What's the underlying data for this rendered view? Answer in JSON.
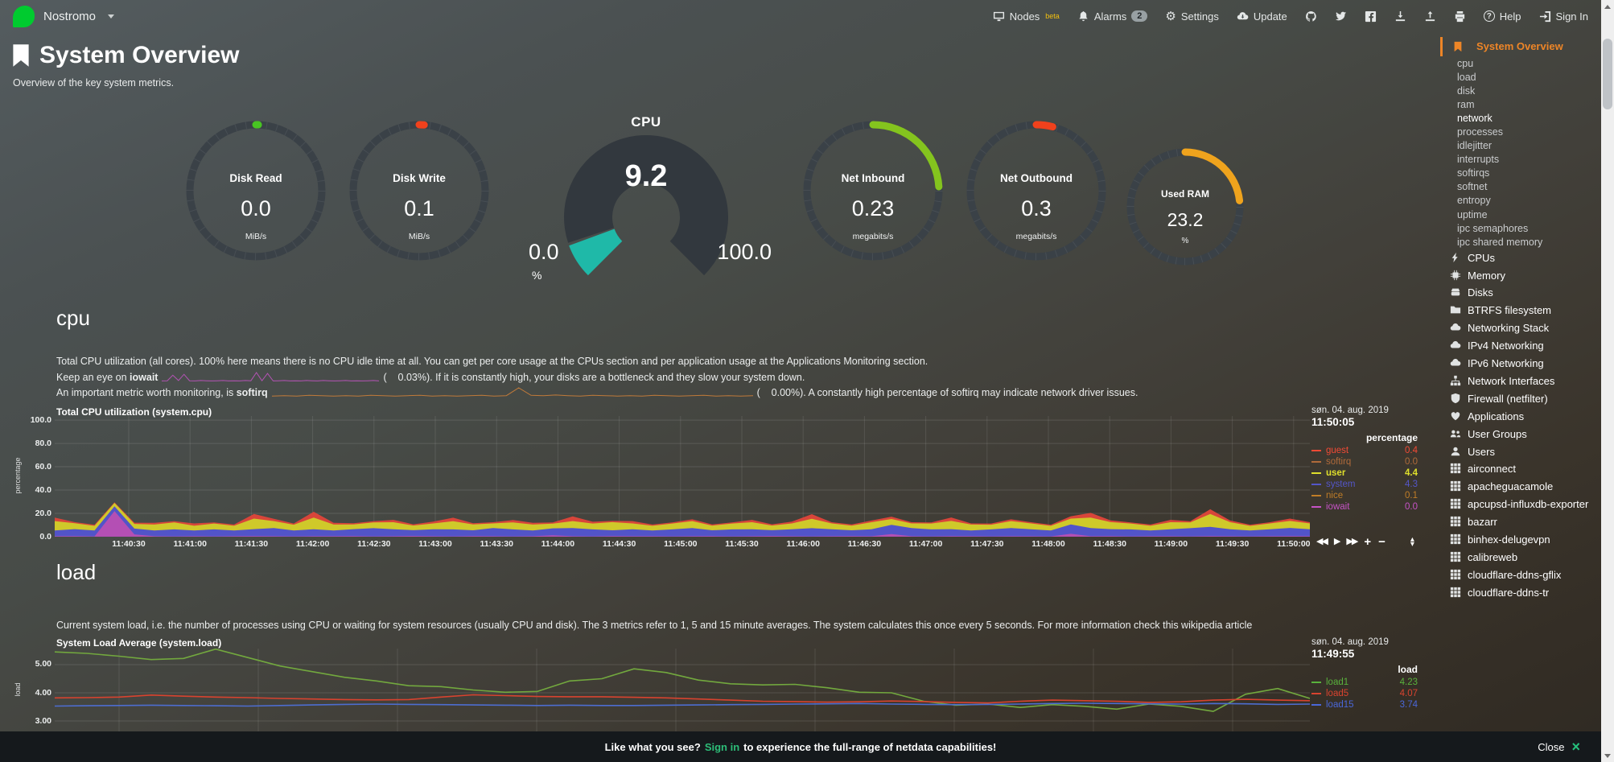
{
  "navbar": {
    "hostname": "Nostromo",
    "nodes_label": "Nodes",
    "nodes_beta": "beta",
    "alarms_label": "Alarms",
    "alarms_badge": "2",
    "settings_label": "Settings",
    "update_label": "Update",
    "help_label": "Help",
    "signin_label": "Sign In"
  },
  "header": {
    "title": "System Overview",
    "subtitle": "Overview of the key system metrics."
  },
  "gauges": [
    {
      "label": "Disk Read",
      "value": "0.0",
      "units": "MiB/s",
      "color": "#48c522",
      "percent": 0.6,
      "size": 178
    },
    {
      "label": "Disk Write",
      "value": "0.1",
      "units": "MiB/s",
      "color": "#f0411c",
      "percent": 1.2,
      "size": 178
    },
    {
      "label": "Net Inbound",
      "value": "0.23",
      "units": "megabits/s",
      "color": "#84c41e",
      "percent": 24,
      "size": 178
    },
    {
      "label": "Net Outbound",
      "value": "0.3",
      "units": "megabits/s",
      "color": "#f0411c",
      "percent": 4,
      "size": 178
    },
    {
      "label": "Used RAM",
      "value": "23.2",
      "units": "%",
      "color": "#efa31d",
      "percent": 23.2,
      "size": 150
    }
  ],
  "cpu_gauge": {
    "title": "CPU",
    "value": "9.2",
    "min": "0.0",
    "max": "100.0",
    "units": "%",
    "percent": 9.2,
    "color": "#1fb9a8"
  },
  "sections": {
    "cpu": {
      "heading": "cpu",
      "desc1": "Total CPU utilization (all cores). 100% here means there is no CPU idle time at all. You can get per core usage at the CPUs section and per application usage at the Applications Monitoring section.",
      "line2_pre": "Keep an eye on ",
      "line2_bold": "iowait",
      "line2_value": "(    0.03%)",
      "line2_post": ". If it is constantly high, your disks are a bottleneck and they slow your system down.",
      "line3_pre": "An important metric worth monitoring, is ",
      "line3_bold": "softirq",
      "line3_value": "(    0.00%)",
      "line3_post": ". A constantly high percentage of softirq may indicate network driver issues.",
      "spark_iowait": [
        0.2,
        0.3,
        2.8,
        0.4,
        3.2,
        0.3,
        0.2,
        0.4,
        0.3,
        0.2,
        0.3,
        0.4,
        0.2,
        0.3,
        0.2,
        0.4,
        0.3,
        4.0,
        0.3,
        3.6,
        0.2,
        0.3,
        0.4,
        0.2,
        0.3,
        0.2,
        0.4,
        0.3,
        0.2,
        0.4,
        0.3,
        0.2,
        0.3,
        0.4,
        0.2,
        0.3,
        0.2,
        0.3,
        0.4,
        0.2
      ],
      "spark_softirq": [
        0.2,
        0.3,
        0.2,
        0.4,
        0.3,
        0.2,
        0.3,
        0.2,
        0.4,
        0.3,
        0.2,
        0.3,
        0.4,
        0.2,
        0.3,
        0.2,
        0.3,
        0.4,
        0.2,
        0.3,
        2.6,
        0.4,
        0.3,
        0.5,
        0.3,
        0.2,
        0.4,
        0.3,
        0.2,
        0.3,
        0.2,
        0.4,
        0.3,
        0.2,
        0.3,
        0.4,
        0.2,
        0.3,
        0.2,
        0.3
      ]
    },
    "load": {
      "heading": "load",
      "desc1": "Current system load, i.e. the number of processes using CPU or waiting for system resources (usually CPU and disk). The 3 metrics refer to 1, 5 and 15 minute averages. The system calculates this once every 5 seconds. For more information check this wikipedia article"
    }
  },
  "chart_data": [
    {
      "type": "area",
      "stacked": true,
      "title": "Total CPU utilization (system.cpu)",
      "ylabel": "percentage",
      "ylim": [
        0,
        103.5
      ],
      "yticks": [
        {
          "v": 0,
          "label": "0.0"
        },
        {
          "v": 20,
          "label": "20.0"
        },
        {
          "v": 40,
          "label": "40.0"
        },
        {
          "v": 60,
          "label": "60.0"
        },
        {
          "v": 80,
          "label": "80.0"
        },
        {
          "v": 100,
          "label": "100.0"
        }
      ],
      "x_ticks": [
        "11:40:30",
        "11:41:00",
        "11:41:30",
        "11:42:00",
        "11:42:30",
        "11:43:00",
        "11:43:30",
        "11:44:00",
        "11:44:30",
        "11:45:00",
        "11:45:30",
        "11:46:00",
        "11:46:30",
        "11:47:00",
        "11:47:30",
        "11:48:00",
        "11:48:30",
        "11:49:00",
        "11:49:30",
        "11:50:00"
      ],
      "legend": {
        "date": "søn. 04. aug. 2019",
        "time": "11:50:05",
        "unit": "percentage",
        "series": [
          {
            "name": "guest",
            "value": "0.4",
            "color": "#f24a35",
            "bold": false
          },
          {
            "name": "softirq",
            "value": "0.0",
            "color": "#b06a3a",
            "bold": false
          },
          {
            "name": "user",
            "value": "4.4",
            "color": "#dfdf2c",
            "bold": true
          },
          {
            "name": "system",
            "value": "4.3",
            "color": "#5456c8",
            "bold": false
          },
          {
            "name": "nice",
            "value": "0.1",
            "color": "#c07d27",
            "bold": false
          },
          {
            "name": "iowait",
            "value": "0.0",
            "color": "#c653c6",
            "bold": false
          }
        ]
      },
      "series": [
        {
          "name": "iowait",
          "color": "#b44fb4",
          "values": [
            0.4,
            0.5,
            0.3,
            22,
            2,
            0.4,
            0.3,
            0.4,
            0.3,
            0.4,
            0.5,
            0.4,
            0.3,
            0.4,
            0.4,
            0.5,
            0.3,
            0.4,
            0.6,
            0.4,
            0.3,
            0.5,
            0.4,
            0.3,
            0.4,
            1.2,
            0.4,
            0.3,
            0.5,
            0.4,
            0.4,
            0.3,
            0.4,
            0.5,
            0.3,
            0.4,
            0.6,
            0.4,
            0.3,
            0.4,
            0.5,
            0.4,
            2.2,
            0.4,
            0.3,
            0.5,
            0.4,
            0.3,
            0.4,
            0.4,
            0.3,
            2.5,
            0.4,
            0.5,
            0.3,
            0.4,
            0.4,
            0.3,
            0.5,
            0.4,
            0.3,
            0.4,
            0.5,
            0.4
          ]
        },
        {
          "name": "system",
          "color": "#5254c8",
          "values": [
            5,
            6,
            5,
            4,
            5,
            5,
            6,
            5,
            6,
            5,
            6,
            7,
            5,
            6,
            5,
            6,
            7,
            6,
            5,
            6,
            6,
            5,
            7,
            6,
            5,
            6,
            7,
            6,
            5,
            6,
            5,
            6,
            7,
            5,
            6,
            6,
            5,
            6,
            7,
            6,
            5,
            6,
            8,
            7,
            6,
            6,
            5,
            6,
            7,
            6,
            5,
            8,
            7,
            6,
            6,
            5,
            6,
            7,
            8,
            6,
            5,
            6,
            7,
            6
          ]
        },
        {
          "name": "user",
          "color": "#cfc92a",
          "values": [
            8,
            5,
            4,
            3,
            4,
            5,
            6,
            4,
            5,
            4,
            9,
            6,
            5,
            10,
            5,
            4,
            5,
            6,
            4,
            5,
            7,
            5,
            4,
            6,
            5,
            4,
            6,
            5,
            7,
            5,
            4,
            5,
            6,
            4,
            5,
            6,
            4,
            5,
            8,
            5,
            4,
            6,
            5,
            4,
            5,
            7,
            5,
            4,
            6,
            5,
            4,
            5,
            9,
            6,
            5,
            4,
            6,
            5,
            11,
            6,
            4,
            5,
            6,
            5
          ]
        },
        {
          "name": "guest",
          "color": "#d8453a",
          "values": [
            3,
            1,
            1,
            0.5,
            1,
            1.5,
            1,
            2,
            1,
            1,
            4,
            2,
            1,
            5,
            1.5,
            1,
            1,
            2,
            1,
            1.5,
            3,
            1,
            1,
            2,
            1.5,
            1,
            4,
            1.5,
            1,
            2,
            1,
            1,
            1.5,
            1,
            1,
            2,
            1,
            1.5,
            4,
            1,
            1,
            1.5,
            2,
            1,
            1,
            3,
            1,
            1,
            1.5,
            1,
            1,
            2,
            4,
            1.5,
            1,
            1,
            2,
            1,
            4,
            1.5,
            1,
            1,
            2,
            1
          ]
        }
      ]
    },
    {
      "type": "line",
      "title": "System Load Average (system.load)",
      "ylabel": "load",
      "ylim": [
        2.63,
        5.57
      ],
      "yticks": [
        {
          "v": 3,
          "label": "3.00"
        },
        {
          "v": 4,
          "label": "4.00"
        },
        {
          "v": 5,
          "label": "5.00"
        }
      ],
      "legend": {
        "date": "søn. 04. aug. 2019",
        "time": "11:49:55",
        "unit": "load",
        "series": [
          {
            "name": "load1",
            "value": "4.23",
            "color": "#59b23c",
            "bold": false
          },
          {
            "name": "load5",
            "value": "4.07",
            "color": "#d8432f",
            "bold": false
          },
          {
            "name": "load15",
            "value": "3.74",
            "color": "#4a67d8",
            "bold": false
          }
        ]
      },
      "series": [
        {
          "name": "load1",
          "color": "#72a83e",
          "values": [
            5.45,
            5.4,
            5.3,
            5.18,
            5.22,
            5.55,
            5.25,
            4.95,
            4.75,
            4.55,
            4.42,
            4.25,
            4.22,
            4.1,
            4.02,
            4.05,
            4.42,
            4.5,
            4.85,
            4.72,
            4.45,
            4.32,
            4.28,
            4.3,
            4.18,
            4.02,
            4.0,
            3.7,
            3.56,
            3.6,
            3.48,
            3.58,
            3.52,
            3.42,
            3.6,
            3.52,
            3.34,
            3.95,
            4.15,
            3.8
          ]
        },
        {
          "name": "load5",
          "color": "#d8432f",
          "values": [
            3.82,
            3.83,
            3.85,
            3.92,
            3.88,
            3.85,
            3.83,
            3.8,
            3.78,
            3.76,
            3.75,
            3.76,
            3.85,
            3.93,
            3.9,
            3.87,
            3.86,
            3.86,
            3.84,
            3.82,
            3.78,
            3.74,
            3.7,
            3.69,
            3.67,
            3.68,
            3.71,
            3.69,
            3.66,
            3.64,
            3.7,
            3.74,
            3.72,
            3.7,
            3.66,
            3.68,
            3.74,
            3.77,
            3.74,
            3.72
          ]
        },
        {
          "name": "load15",
          "color": "#4d6dd0",
          "values": [
            3.53,
            3.54,
            3.55,
            3.56,
            3.55,
            3.54,
            3.53,
            3.55,
            3.57,
            3.59,
            3.6,
            3.59,
            3.58,
            3.57,
            3.56,
            3.55,
            3.56,
            3.55,
            3.55,
            3.56,
            3.57,
            3.58,
            3.59,
            3.6,
            3.61,
            3.62,
            3.6,
            3.59,
            3.58,
            3.59,
            3.6,
            3.62,
            3.63,
            3.62,
            3.61,
            3.6,
            3.62,
            3.61,
            3.59,
            3.6
          ]
        }
      ]
    }
  ],
  "toolbox": {
    "rewind": "◀◀",
    "play": "▶",
    "forward": "▶▶",
    "zoom_in": "+",
    "zoom_out": "−",
    "resize_up": "▴",
    "resize_down": "▾"
  },
  "sidebar": {
    "items": [
      {
        "label": "System Overview",
        "icon": "bookmark",
        "variant": "active"
      },
      {
        "label": "cpu",
        "variant": "sub"
      },
      {
        "label": "load",
        "variant": "sub"
      },
      {
        "label": "disk",
        "variant": "sub"
      },
      {
        "label": "ram",
        "variant": "sub"
      },
      {
        "label": "network",
        "variant": "sub-highlight"
      },
      {
        "label": "processes",
        "variant": "sub"
      },
      {
        "label": "idlejitter",
        "variant": "sub"
      },
      {
        "label": "interrupts",
        "variant": "sub"
      },
      {
        "label": "softirqs",
        "variant": "sub"
      },
      {
        "label": "softnet",
        "variant": "sub"
      },
      {
        "label": "entropy",
        "variant": "sub"
      },
      {
        "label": "uptime",
        "variant": "sub"
      },
      {
        "label": "ipc semaphores",
        "variant": "sub"
      },
      {
        "label": "ipc shared memory",
        "variant": "sub"
      },
      {
        "label": "CPUs",
        "icon": "bolt",
        "variant": "main"
      },
      {
        "label": "Memory",
        "icon": "microchip",
        "variant": "main"
      },
      {
        "label": "Disks",
        "icon": "hdd",
        "variant": "main"
      },
      {
        "label": "BTRFS filesystem",
        "icon": "folder",
        "variant": "main"
      },
      {
        "label": "Networking Stack",
        "icon": "cloud",
        "variant": "main"
      },
      {
        "label": "IPv4 Networking",
        "icon": "cloud",
        "variant": "main"
      },
      {
        "label": "IPv6 Networking",
        "icon": "cloud",
        "variant": "main"
      },
      {
        "label": "Network Interfaces",
        "icon": "sitemap",
        "variant": "main"
      },
      {
        "label": "Firewall (netfilter)",
        "icon": "shield",
        "variant": "main"
      },
      {
        "label": "Applications",
        "icon": "heart",
        "variant": "main"
      },
      {
        "label": "User Groups",
        "icon": "users",
        "variant": "main"
      },
      {
        "label": "Users",
        "icon": "user",
        "variant": "main"
      },
      {
        "label": "airconnect",
        "icon": "grid",
        "variant": "main"
      },
      {
        "label": "apacheguacamole",
        "icon": "grid",
        "variant": "main"
      },
      {
        "label": "apcupsd-influxdb-exporter",
        "icon": "grid",
        "variant": "main"
      },
      {
        "label": "bazarr",
        "icon": "grid",
        "variant": "main"
      },
      {
        "label": "binhex-delugevpn",
        "icon": "grid",
        "variant": "main"
      },
      {
        "label": "calibreweb",
        "icon": "grid",
        "variant": "main"
      },
      {
        "label": "cloudflare-ddns-gflix",
        "icon": "grid",
        "variant": "main"
      },
      {
        "label": "cloudflare-ddns-tr",
        "icon": "grid",
        "variant": "main"
      }
    ]
  },
  "footer": {
    "prefix": "Like what you see? ",
    "signin": "Sign in",
    "suffix": " to experience the full-range of netdata capabilities!",
    "close_label": "Close",
    "close_x": "×"
  }
}
